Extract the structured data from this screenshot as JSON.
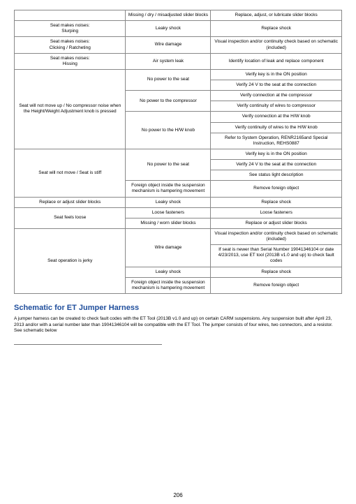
{
  "table": {
    "rows": [
      {
        "c1": "",
        "c2": "Missing / dry / misadjusted slider blocks",
        "c3": "Replace, adjust, or lubricate slider blocks"
      },
      {
        "c1": "Seat makes noises:\nSlurping",
        "c2": "Leaky shock",
        "c3": "Replace shock"
      },
      {
        "c1": "Seat makes noises:\nClicking / Ratcheting",
        "c2": "Wire damage",
        "c3": "Visual inspection and/or continuity check based on schematic (included)"
      },
      {
        "c1": "Seat makes noises:\nHissing",
        "c2": "Air system leak",
        "c3": "Identify location of leak and replace component"
      },
      {
        "c1_rowspan": 3,
        "c1": "Seat will not move up / No compressor noise when the Height/Weight Adjustment knob is pressed",
        "c2": "No power to the seat",
        "c3_lines": [
          "Verify key is in the ON position",
          "Verify 24 V to the seat at the connection"
        ]
      },
      {
        "c2": "No power to the compressor",
        "c3_lines": [
          "Verify connection at the compressor",
          "Verify continuity of wires to compressor"
        ]
      },
      {
        "c2": "No power to the H/W knob",
        "c3_lines": [
          "Verify connection at the H/W knob",
          "Verify continuity of wires to the H/W knob",
          "Refer to System Operation, RENR2165and Special Instruction, REHS0887"
        ]
      },
      {
        "c1_rowspan": 2,
        "c1": "Seat will not move / Seat is stiff",
        "c2": "No power to the seat",
        "c3_lines": [
          "Verify key is in the ON position",
          "Verify 24 V to the seat at the connection",
          "See status light description"
        ]
      },
      {
        "c2": "Foreign object inside the suspension mechanism is hampering movement",
        "c3": "Remove foreign object"
      },
      {
        "c1": "Replace or adjust slider blocks",
        "c2": "Leaky shock",
        "c3": "Replace shock"
      },
      {
        "c1_rowspan": 2,
        "c1": "Seat feels loose",
        "c2": "Loose fasteners",
        "c3": "Loose fasteners"
      },
      {
        "c2": "Missing / worn slider blocks",
        "c3": "Replace or adjust slider blocks"
      },
      {
        "c1_rowspan": 3,
        "c1": "Seat operation is jerky",
        "c2": "Wire damage",
        "c3_lines": [
          "Visual inspection and/or continuity check based on schematic (included)",
          "If seat is newer than Serial Number 19041346104 or date 4/23/2013, use ET tool (2013B v1.0 and up) to check fault codes"
        ]
      },
      {
        "c2": "Leaky shock",
        "c3": "Replace shock"
      },
      {
        "c2": "Foreign object inside the suspension mechanism is hampering movement",
        "c3": "Remove foreign object"
      }
    ]
  },
  "section": {
    "title": "Schematic for ET Jumper Harness",
    "body": "A jumper harness can be created to check fault codes with the ET Tool (2013B v1.0 and up) on certain CARM suspensions. Any suspension built after April 23, 2013 and/or with a serial number later than 19041346104 will be compatible with the ET Tool. The jumper consists of four wires, two connectors, and a resistor. See schematic below"
  },
  "page_number": "206"
}
